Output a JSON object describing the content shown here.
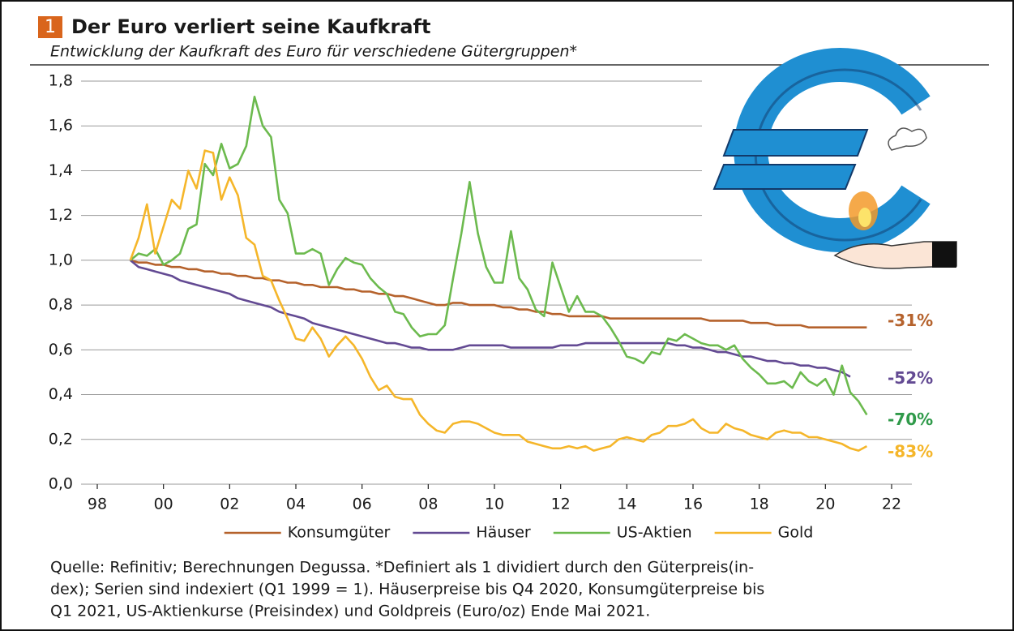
{
  "chart_data": {
    "type": "line",
    "number_badge": "1",
    "title": "Der Euro verliert seine Kaufkraft",
    "subtitle": "Entwicklung der Kaufkraft des Euro für verschiedene Gütergruppen*",
    "notes": [
      "Quelle: Refinitiv; Berechnungen Degussa. *Definiert als 1 dividiert durch den Güterpreis(in-",
      "dex); Serien sind indexiert (Q1 1999 = 1). Häuserpreise bis Q4 2020, Konsumgüterpreise bis",
      "Q1 2021, US-Aktienkurse (Preisindex) und Goldpreis (Euro/oz) Ende Mai 2021."
    ],
    "xlim": [
      1998,
      2022
    ],
    "xticks": [
      {
        "value": 1998,
        "label": "98"
      },
      {
        "value": 2000,
        "label": "00"
      },
      {
        "value": 2002,
        "label": "02"
      },
      {
        "value": 2004,
        "label": "04"
      },
      {
        "value": 2006,
        "label": "06"
      },
      {
        "value": 2008,
        "label": "08"
      },
      {
        "value": 2010,
        "label": "10"
      },
      {
        "value": 2012,
        "label": "12"
      },
      {
        "value": 2014,
        "label": "14"
      },
      {
        "value": 2016,
        "label": "16"
      },
      {
        "value": 2018,
        "label": "18"
      },
      {
        "value": 2020,
        "label": "20"
      },
      {
        "value": 2022,
        "label": "22"
      }
    ],
    "ylim": [
      0,
      1.8
    ],
    "yticks": [
      {
        "value": 0,
        "label": "0,0"
      },
      {
        "value": 0.2,
        "label": "0,2"
      },
      {
        "value": 0.4,
        "label": "0,4"
      },
      {
        "value": 0.6,
        "label": "0,6"
      },
      {
        "value": 0.8,
        "label": "0,8"
      },
      {
        "value": 1.0,
        "label": "1,0"
      },
      {
        "value": 1.2,
        "label": "1,2"
      },
      {
        "value": 1.4,
        "label": "1,4"
      },
      {
        "value": 1.6,
        "label": "1,6"
      },
      {
        "value": 1.8,
        "label": "1,8"
      }
    ],
    "grid": true,
    "legend": "bottom",
    "x": [
      1999,
      1999.25,
      1999.5,
      1999.75,
      2000,
      2000.25,
      2000.5,
      2000.75,
      2001,
      2001.25,
      2001.5,
      2001.75,
      2002,
      2002.25,
      2002.5,
      2002.75,
      2003,
      2003.25,
      2003.5,
      2003.75,
      2004,
      2004.25,
      2004.5,
      2004.75,
      2005,
      2005.25,
      2005.5,
      2005.75,
      2006,
      2006.25,
      2006.5,
      2006.75,
      2007,
      2007.25,
      2007.5,
      2007.75,
      2008,
      2008.25,
      2008.5,
      2008.75,
      2009,
      2009.25,
      2009.5,
      2009.75,
      2010,
      2010.25,
      2010.5,
      2010.75,
      2011,
      2011.25,
      2011.5,
      2011.75,
      2012,
      2012.25,
      2012.5,
      2012.75,
      2013,
      2013.25,
      2013.5,
      2013.75,
      2014,
      2014.25,
      2014.5,
      2014.75,
      2015,
      2015.25,
      2015.5,
      2015.75,
      2016,
      2016.25,
      2016.5,
      2016.75,
      2017,
      2017.25,
      2017.5,
      2017.75,
      2018,
      2018.25,
      2018.5,
      2018.75,
      2019,
      2019.25,
      2019.5,
      2019.75,
      2020,
      2020.25,
      2020.5,
      2020.75,
      2021,
      2021.25
    ],
    "series": [
      {
        "name": "Konsumgüter",
        "color": "#b5622c",
        "end_label": "-31%",
        "values": [
          1.0,
          0.99,
          0.99,
          0.98,
          0.98,
          0.97,
          0.97,
          0.96,
          0.96,
          0.95,
          0.95,
          0.94,
          0.94,
          0.93,
          0.93,
          0.92,
          0.92,
          0.91,
          0.91,
          0.9,
          0.9,
          0.89,
          0.89,
          0.88,
          0.88,
          0.88,
          0.87,
          0.87,
          0.86,
          0.86,
          0.85,
          0.85,
          0.84,
          0.84,
          0.83,
          0.82,
          0.81,
          0.8,
          0.8,
          0.81,
          0.81,
          0.8,
          0.8,
          0.8,
          0.8,
          0.79,
          0.79,
          0.78,
          0.78,
          0.77,
          0.77,
          0.76,
          0.76,
          0.75,
          0.75,
          0.75,
          0.75,
          0.75,
          0.74,
          0.74,
          0.74,
          0.74,
          0.74,
          0.74,
          0.74,
          0.74,
          0.74,
          0.74,
          0.74,
          0.74,
          0.73,
          0.73,
          0.73,
          0.73,
          0.73,
          0.72,
          0.72,
          0.72,
          0.71,
          0.71,
          0.71,
          0.71,
          0.7,
          0.7,
          0.7,
          0.7,
          0.7,
          0.7,
          0.7,
          0.7
        ]
      },
      {
        "name": "Häuser",
        "color": "#634a93",
        "end_label": "-52%",
        "values": [
          1.0,
          0.97,
          0.96,
          0.95,
          0.94,
          0.93,
          0.91,
          0.9,
          0.89,
          0.88,
          0.87,
          0.86,
          0.85,
          0.83,
          0.82,
          0.81,
          0.8,
          0.79,
          0.77,
          0.76,
          0.75,
          0.74,
          0.72,
          0.71,
          0.7,
          0.69,
          0.68,
          0.67,
          0.66,
          0.65,
          0.64,
          0.63,
          0.63,
          0.62,
          0.61,
          0.61,
          0.6,
          0.6,
          0.6,
          0.6,
          0.61,
          0.62,
          0.62,
          0.62,
          0.62,
          0.62,
          0.61,
          0.61,
          0.61,
          0.61,
          0.61,
          0.61,
          0.62,
          0.62,
          0.62,
          0.63,
          0.63,
          0.63,
          0.63,
          0.63,
          0.63,
          0.63,
          0.63,
          0.63,
          0.63,
          0.63,
          0.62,
          0.62,
          0.61,
          0.61,
          0.6,
          0.59,
          0.59,
          0.58,
          0.57,
          0.57,
          0.56,
          0.55,
          0.55,
          0.54,
          0.54,
          0.53,
          0.53,
          0.52,
          0.52,
          0.51,
          0.5,
          0.48,
          null,
          null
        ]
      },
      {
        "name": "US-Aktien",
        "color": "#6cba4e",
        "end_label_color": "#2f9a4a",
        "end_label": "-70%",
        "values": [
          1.0,
          1.03,
          1.02,
          1.05,
          0.98,
          1.0,
          1.03,
          1.14,
          1.16,
          1.43,
          1.38,
          1.52,
          1.41,
          1.43,
          1.51,
          1.73,
          1.6,
          1.55,
          1.27,
          1.21,
          1.03,
          1.03,
          1.05,
          1.03,
          0.89,
          0.96,
          1.01,
          0.99,
          0.98,
          0.92,
          0.88,
          0.85,
          0.77,
          0.76,
          0.7,
          0.66,
          0.67,
          0.67,
          0.71,
          0.92,
          1.12,
          1.35,
          1.12,
          0.97,
          0.9,
          0.9,
          1.13,
          0.92,
          0.87,
          0.78,
          0.75,
          0.99,
          0.88,
          0.77,
          0.84,
          0.77,
          0.77,
          0.75,
          0.7,
          0.64,
          0.57,
          0.56,
          0.54,
          0.59,
          0.58,
          0.65,
          0.64,
          0.67,
          0.65,
          0.63,
          0.62,
          0.62,
          0.6,
          0.62,
          0.56,
          0.52,
          0.49,
          0.45,
          0.45,
          0.46,
          0.43,
          0.5,
          0.46,
          0.44,
          0.47,
          0.4,
          0.53,
          0.41,
          0.37,
          0.31
        ]
      },
      {
        "name": "Gold",
        "color": "#f5b62a",
        "end_label": "-83%",
        "values": [
          1.0,
          1.1,
          1.25,
          1.03,
          1.15,
          1.27,
          1.23,
          1.4,
          1.32,
          1.49,
          1.48,
          1.27,
          1.37,
          1.29,
          1.1,
          1.07,
          0.93,
          0.91,
          0.82,
          0.74,
          0.65,
          0.64,
          0.7,
          0.65,
          0.57,
          0.62,
          0.66,
          0.62,
          0.56,
          0.48,
          0.42,
          0.44,
          0.39,
          0.38,
          0.38,
          0.31,
          0.27,
          0.24,
          0.23,
          0.27,
          0.28,
          0.28,
          0.27,
          0.25,
          0.23,
          0.22,
          0.22,
          0.22,
          0.19,
          0.18,
          0.17,
          0.16,
          0.16,
          0.17,
          0.16,
          0.17,
          0.15,
          0.16,
          0.17,
          0.2,
          0.21,
          0.2,
          0.19,
          0.22,
          0.23,
          0.26,
          0.26,
          0.27,
          0.29,
          0.25,
          0.23,
          0.23,
          0.27,
          0.25,
          0.24,
          0.22,
          0.21,
          0.2,
          0.23,
          0.24,
          0.23,
          0.23,
          0.21,
          0.21,
          0.2,
          0.19,
          0.18,
          0.16,
          0.15,
          0.17
        ]
      }
    ]
  }
}
